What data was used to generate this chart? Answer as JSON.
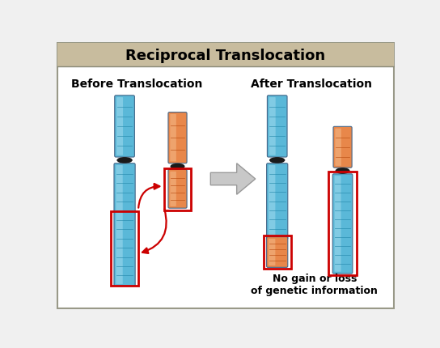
{
  "title": "Reciprocal Translocation",
  "title_bg": "#c8bc9e",
  "title_border": "#888877",
  "bg_color": "#f0f0f0",
  "panel_bg": "#ffffff",
  "border_color": "#999988",
  "before_label": "Before Translocation",
  "after_label": "After Translocation",
  "note_text": "No gain or loss\nof genetic information",
  "chr_blue_main": "#5ab8d8",
  "chr_blue_light": "#a8dff0",
  "chr_blue_dark": "#3888aa",
  "chr_blue_stripe": "#2288aa",
  "chr_orange_main": "#e8874a",
  "chr_orange_light": "#f5c090",
  "chr_orange_dark": "#c05520",
  "chr_orange_stripe": "#b84a10",
  "chr_centromere": "#1a1a1a",
  "red_box": "#cc0000",
  "arrow_color": "#cc0000",
  "big_arrow_fill": "#c8c8c8",
  "big_arrow_edge": "#999999"
}
